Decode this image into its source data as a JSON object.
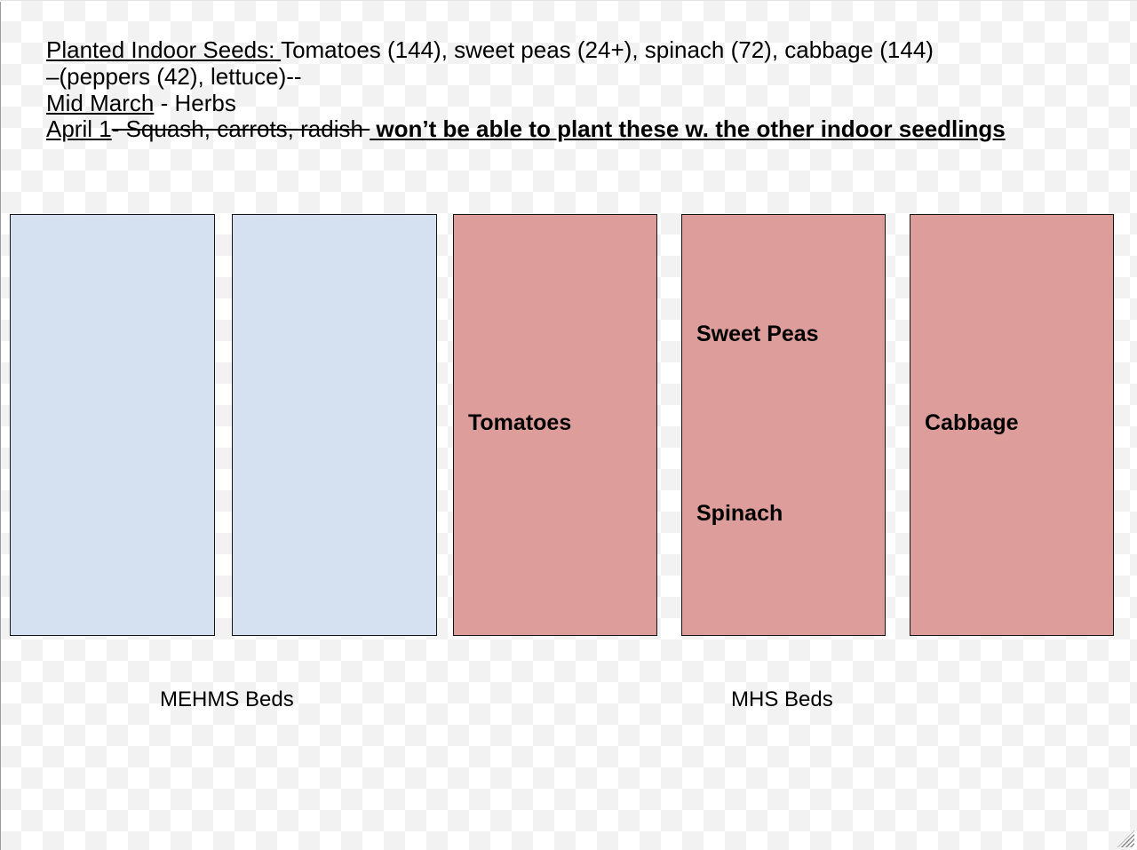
{
  "canvas": {
    "notes": {
      "line1_underlined": "Planted Indoor Seeds: ",
      "line1_rest": "Tomatoes (144), sweet peas (24+), spinach (72), cabbage (144)",
      "line2": "–(peppers (42), lettuce)--",
      "line3_underlined": "Mid March",
      "line3_rest": " - Herbs",
      "line4_underlined": "April 1",
      "line4_struck": "- Squash, carrots, radish ",
      "line4_bold_underlined": " won’t be able to plant these w. the other indoor seedlings"
    },
    "beds": [
      {
        "group": "MEHMS",
        "color": "blue"
      },
      {
        "group": "MEHMS",
        "color": "blue"
      },
      {
        "group": "MHS",
        "color": "pink",
        "label": "Tomatoes"
      },
      {
        "group": "MHS",
        "color": "pink",
        "label_top": "Sweet Peas",
        "label_bottom": "Spinach"
      },
      {
        "group": "MHS",
        "color": "pink",
        "label": "Cabbage"
      }
    ],
    "group_labels": {
      "left": "MEHMS Beds",
      "right": "MHS Beds"
    },
    "colors": {
      "bed_blue": "#d5e1f1",
      "bed_pink": "#dd9d9b",
      "bed_border": "#151515",
      "checker_gray": "#f2f2f2"
    }
  }
}
